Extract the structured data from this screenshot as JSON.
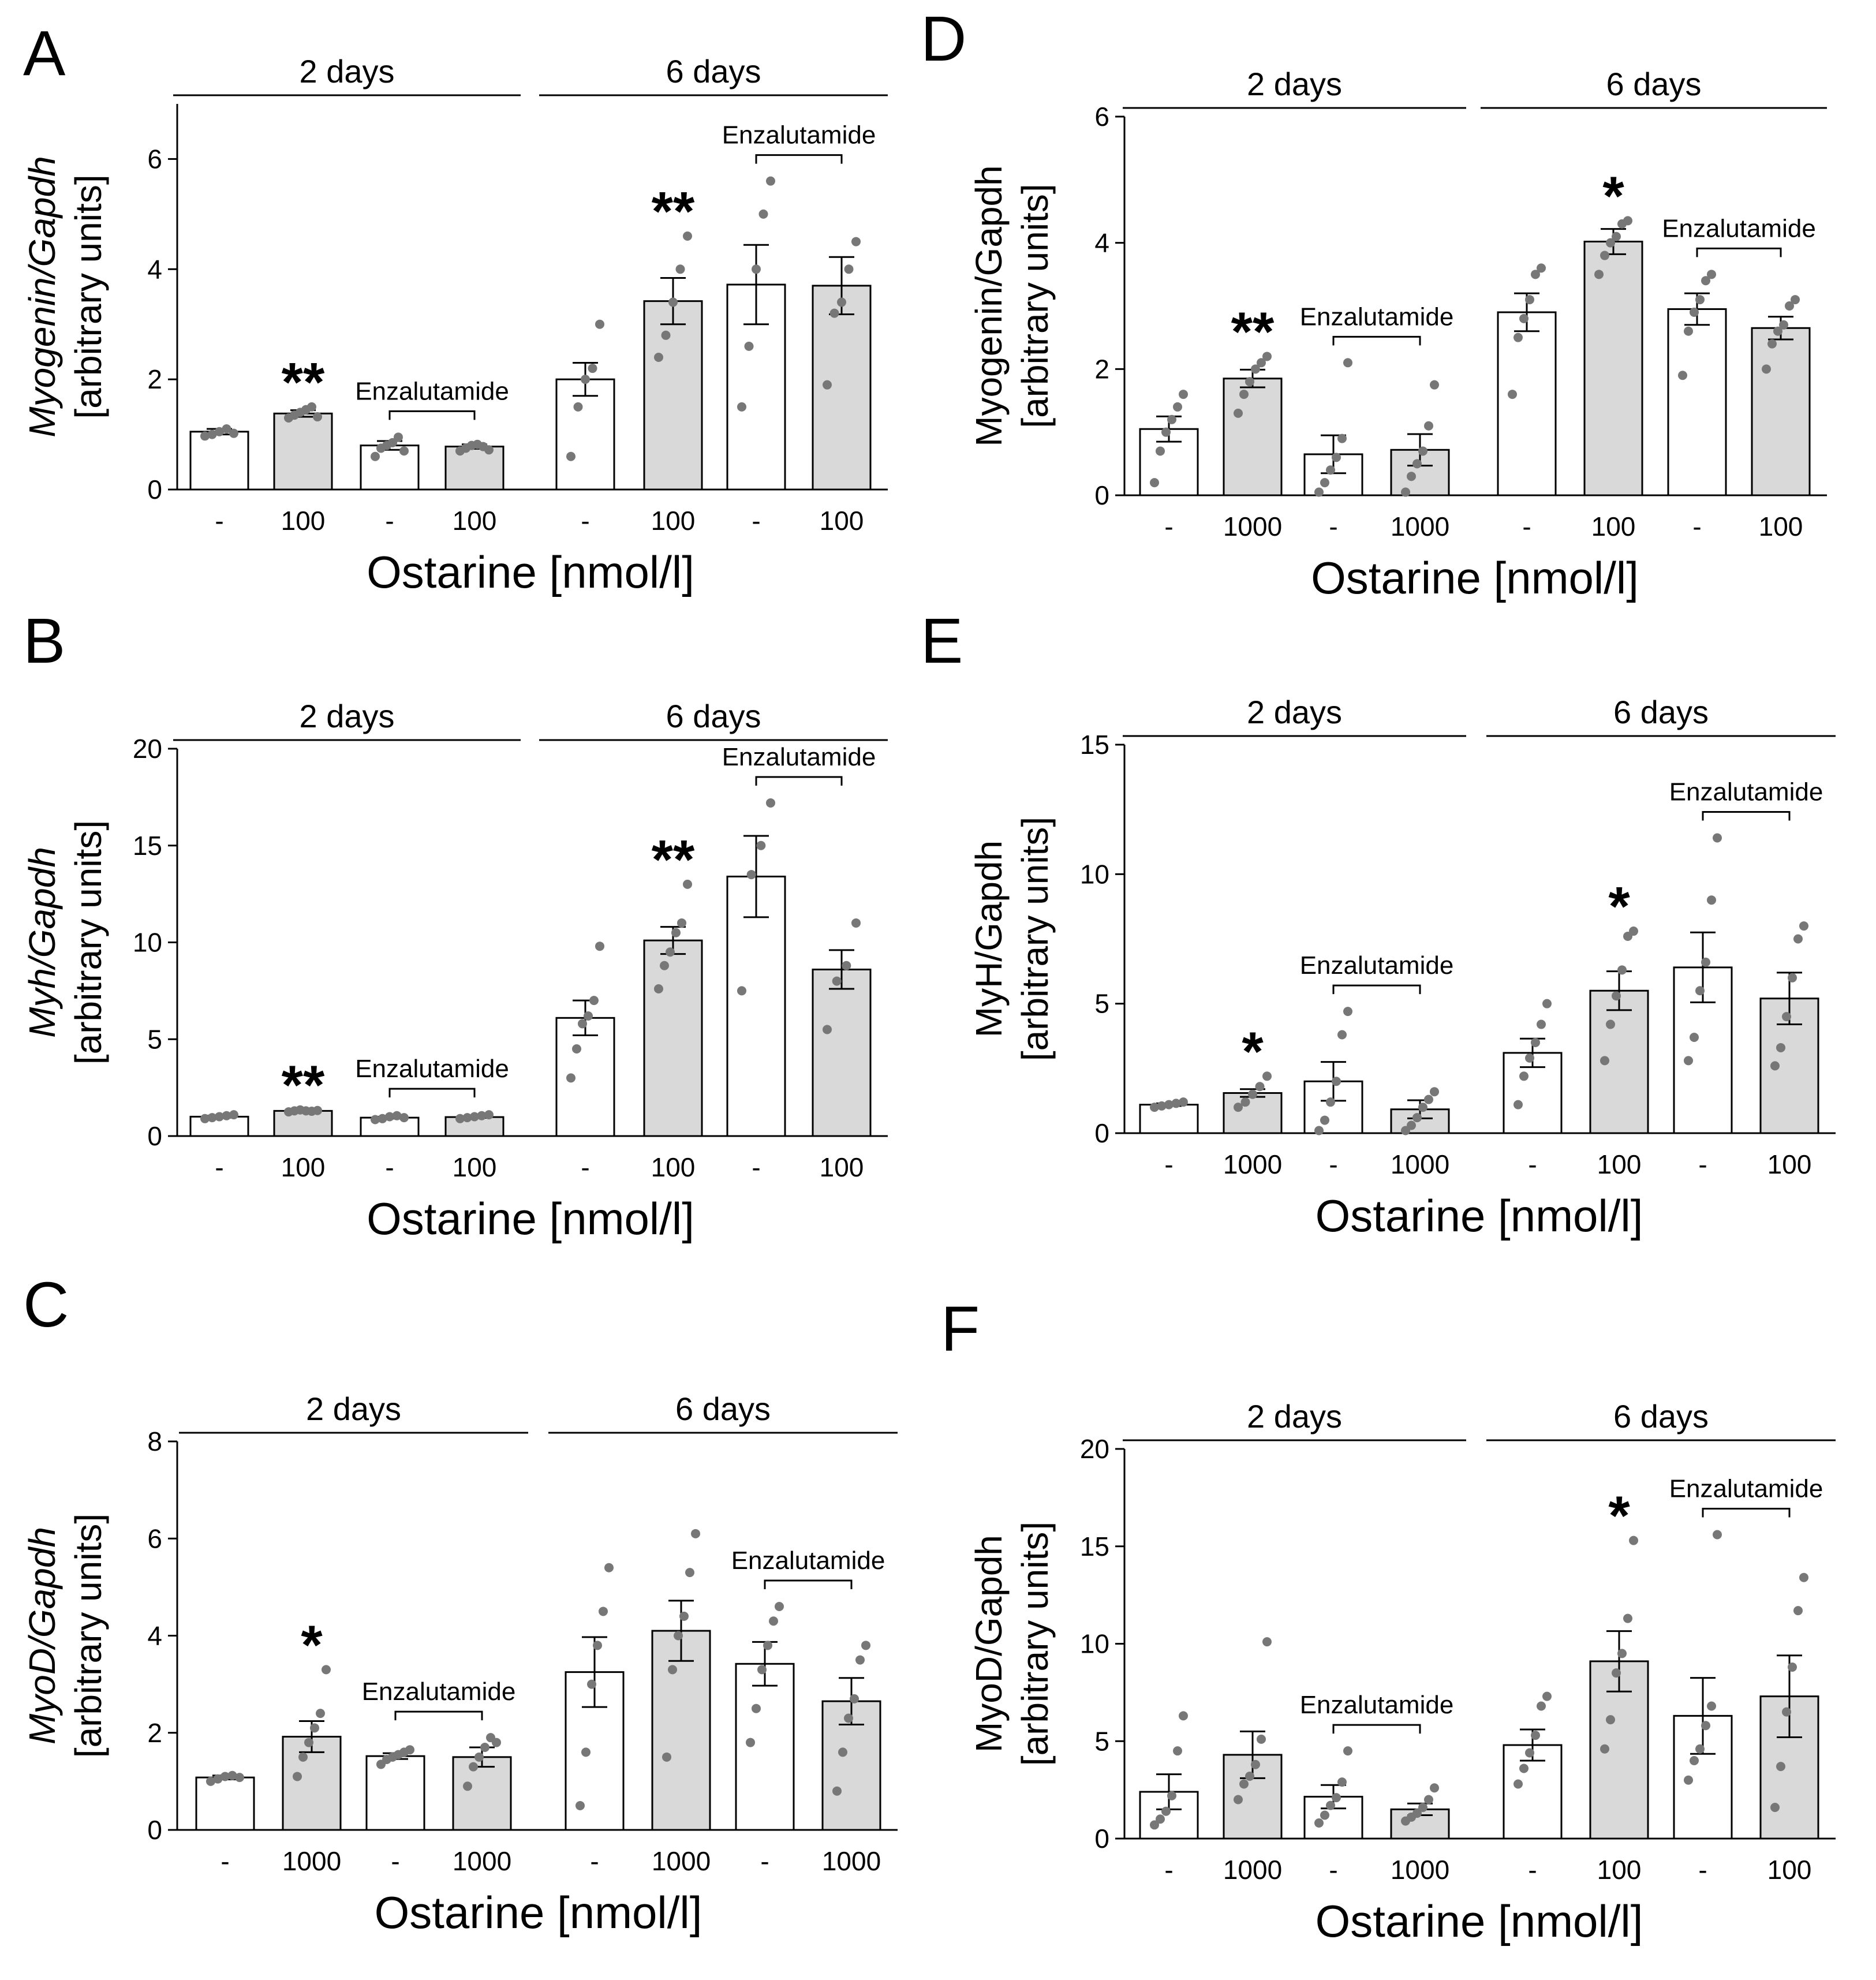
{
  "figure": {
    "colors": {
      "control": "#ffffff",
      "treated": "#d9d9d9",
      "dot": "#777777",
      "ink": "#000000"
    }
  },
  "chart_data": [
    {
      "panel": "A",
      "type": "bar",
      "ylabel_gene": "Myogenin/Gapdh",
      "ylabel_units": "[arbitrary units]",
      "italic_gene": true,
      "xlabel": "Ostarine [nmol/l]",
      "ylim": [
        0,
        7
      ],
      "yticks": [
        0,
        2,
        4,
        6
      ],
      "groups": [
        {
          "label": "2 days",
          "enzalutamide": "Enzalutamide",
          "bars": [
            {
              "cond": "-",
              "fill": "control",
              "mean": 1.05,
              "sem": 0.05,
              "points": [
                0.97,
                1.0,
                1.05,
                1.1,
                1.02
              ],
              "sig": ""
            },
            {
              "cond": "100",
              "fill": "treated",
              "mean": 1.38,
              "sem": 0.06,
              "points": [
                1.3,
                1.35,
                1.4,
                1.45,
                1.5,
                1.32
              ],
              "sig": "**"
            },
            {
              "cond": "-",
              "fill": "control",
              "mean": 0.8,
              "sem": 0.08,
              "points": [
                0.6,
                0.75,
                0.8,
                0.85,
                0.95,
                0.7
              ],
              "sig": ""
            },
            {
              "cond": "100",
              "fill": "treated",
              "mean": 0.78,
              "sem": 0.04,
              "points": [
                0.7,
                0.75,
                0.8,
                0.82,
                0.78,
                0.72
              ],
              "sig": ""
            }
          ]
        },
        {
          "label": "6 days",
          "enzalutamide": "Enzalutamide",
          "bars": [
            {
              "cond": "-",
              "fill": "control",
              "mean": 2.0,
              "sem": 0.3,
              "points": [
                0.6,
                1.5,
                2.0,
                2.2,
                3.0
              ],
              "sig": ""
            },
            {
              "cond": "100",
              "fill": "treated",
              "mean": 3.42,
              "sem": 0.42,
              "points": [
                2.4,
                2.8,
                3.4,
                4.0,
                4.6
              ],
              "sig": "**"
            },
            {
              "cond": "-",
              "fill": "control",
              "mean": 3.72,
              "sem": 0.72,
              "points": [
                1.5,
                2.6,
                4.0,
                5.0,
                5.6
              ],
              "sig": ""
            },
            {
              "cond": "100",
              "fill": "treated",
              "mean": 3.7,
              "sem": 0.52,
              "points": [
                1.9,
                3.2,
                3.4,
                4.0,
                4.5
              ],
              "sig": ""
            }
          ]
        }
      ]
    },
    {
      "panel": "B",
      "type": "bar",
      "ylabel_gene": "Myh/Gapdh",
      "ylabel_units": "[arbitrary units]",
      "italic_gene": true,
      "xlabel": "Ostarine [nmol/l]",
      "ylim": [
        0,
        20
      ],
      "yticks": [
        0,
        5,
        10,
        15,
        20
      ],
      "groups": [
        {
          "label": "2 days",
          "enzalutamide": "Enzalutamide",
          "bars": [
            {
              "cond": "-",
              "fill": "control",
              "mean": 1.0,
              "sem": 0.05,
              "points": [
                0.9,
                0.95,
                1.0,
                1.05,
                1.1
              ],
              "sig": ""
            },
            {
              "cond": "100",
              "fill": "treated",
              "mean": 1.3,
              "sem": 0.04,
              "points": [
                1.25,
                1.3,
                1.35,
                1.3,
                1.28,
                1.32
              ],
              "sig": "**"
            },
            {
              "cond": "-",
              "fill": "control",
              "mean": 0.95,
              "sem": 0.05,
              "points": [
                0.85,
                0.9,
                1.0,
                1.05,
                0.95
              ],
              "sig": ""
            },
            {
              "cond": "100",
              "fill": "treated",
              "mean": 0.98,
              "sem": 0.04,
              "points": [
                0.9,
                0.95,
                1.0,
                1.05,
                1.1
              ],
              "sig": ""
            }
          ]
        },
        {
          "label": "6 days",
          "enzalutamide": "Enzalutamide",
          "bars": [
            {
              "cond": "-",
              "fill": "control",
              "mean": 6.1,
              "sem": 0.9,
              "points": [
                3.0,
                4.5,
                5.8,
                6.2,
                7.0,
                9.8
              ],
              "sig": ""
            },
            {
              "cond": "100",
              "fill": "treated",
              "mean": 10.1,
              "sem": 0.7,
              "points": [
                7.6,
                8.8,
                9.5,
                10.5,
                11.0,
                13.0
              ],
              "sig": "**"
            },
            {
              "cond": "-",
              "fill": "control",
              "mean": 13.4,
              "sem": 2.1,
              "points": [
                7.5,
                13.5,
                15.0,
                17.2
              ],
              "sig": ""
            },
            {
              "cond": "100",
              "fill": "treated",
              "mean": 8.6,
              "sem": 1.0,
              "points": [
                5.5,
                8.0,
                8.8,
                11.0
              ],
              "sig": ""
            }
          ]
        }
      ]
    },
    {
      "panel": "C",
      "type": "bar",
      "ylabel_gene": "MyoD/Gapdh",
      "ylabel_units": "[arbitrary units]",
      "italic_gene": true,
      "xlabel": "Ostarine [nmol/l]",
      "ylim": [
        0,
        8
      ],
      "yticks": [
        0,
        2,
        4,
        6,
        8
      ],
      "groups": [
        {
          "label": "2 days",
          "enzalutamide": "Enzalutamide",
          "bars": [
            {
              "cond": "-",
              "fill": "control",
              "mean": 1.08,
              "sem": 0.04,
              "points": [
                1.0,
                1.05,
                1.1,
                1.12,
                1.08
              ],
              "sig": ""
            },
            {
              "cond": "1000",
              "fill": "treated",
              "mean": 1.92,
              "sem": 0.32,
              "points": [
                1.1,
                1.5,
                1.8,
                2.1,
                2.4,
                3.3
              ],
              "sig": "*"
            },
            {
              "cond": "-",
              "fill": "control",
              "mean": 1.52,
              "sem": 0.06,
              "points": [
                1.35,
                1.45,
                1.5,
                1.55,
                1.6,
                1.65
              ],
              "sig": ""
            },
            {
              "cond": "1000",
              "fill": "treated",
              "mean": 1.5,
              "sem": 0.2,
              "points": [
                0.9,
                1.3,
                1.5,
                1.7,
                1.9,
                1.8
              ],
              "sig": ""
            }
          ]
        },
        {
          "label": "6 days",
          "enzalutamide": "Enzalutamide",
          "bars": [
            {
              "cond": "-",
              "fill": "control",
              "mean": 3.25,
              "sem": 0.72,
              "points": [
                0.5,
                1.6,
                3.0,
                3.8,
                4.5,
                5.4
              ],
              "sig": ""
            },
            {
              "cond": "1000",
              "fill": "treated",
              "mean": 4.1,
              "sem": 0.62,
              "points": [
                1.5,
                3.3,
                4.0,
                4.4,
                5.3,
                6.1
              ],
              "sig": ""
            },
            {
              "cond": "-",
              "fill": "control",
              "mean": 3.42,
              "sem": 0.45,
              "points": [
                1.8,
                2.5,
                3.3,
                3.8,
                4.3,
                4.6
              ],
              "sig": ""
            },
            {
              "cond": "1000",
              "fill": "treated",
              "mean": 2.65,
              "sem": 0.48,
              "points": [
                0.8,
                1.6,
                2.3,
                2.7,
                3.5,
                3.8
              ],
              "sig": ""
            }
          ]
        }
      ]
    },
    {
      "panel": "D",
      "type": "bar",
      "ylabel_gene": "Myogenin/Gapdh",
      "ylabel_units": "[arbitrary units]",
      "italic_gene": false,
      "xlabel": "Ostarine [nmol/l]",
      "ylim": [
        0,
        6
      ],
      "yticks": [
        0,
        2,
        4,
        6
      ],
      "groups": [
        {
          "label": "2 days",
          "enzalutamide": "Enzalutamide",
          "bars": [
            {
              "cond": "-",
              "fill": "control",
              "mean": 1.05,
              "sem": 0.2,
              "points": [
                0.2,
                0.7,
                1.0,
                1.2,
                1.4,
                1.6
              ],
              "sig": ""
            },
            {
              "cond": "1000",
              "fill": "treated",
              "mean": 1.85,
              "sem": 0.14,
              "points": [
                1.3,
                1.6,
                1.8,
                2.0,
                2.1,
                2.2
              ],
              "sig": "**"
            },
            {
              "cond": "-",
              "fill": "control",
              "mean": 0.65,
              "sem": 0.3,
              "points": [
                0.05,
                0.2,
                0.4,
                0.6,
                0.9,
                2.1
              ],
              "sig": ""
            },
            {
              "cond": "1000",
              "fill": "treated",
              "mean": 0.72,
              "sem": 0.25,
              "points": [
                0.05,
                0.3,
                0.5,
                0.7,
                1.1,
                1.75
              ],
              "sig": ""
            }
          ]
        },
        {
          "label": "6 days",
          "enzalutamide": "Enzalutamide",
          "bars": [
            {
              "cond": "-",
              "fill": "control",
              "mean": 2.9,
              "sem": 0.3,
              "points": [
                1.6,
                2.5,
                2.8,
                3.1,
                3.5,
                3.6
              ],
              "sig": ""
            },
            {
              "cond": "100",
              "fill": "treated",
              "mean": 4.02,
              "sem": 0.2,
              "points": [
                3.5,
                3.8,
                4.0,
                4.1,
                4.3,
                4.35
              ],
              "sig": "*"
            },
            {
              "cond": "-",
              "fill": "control",
              "mean": 2.95,
              "sem": 0.25,
              "points": [
                1.9,
                2.6,
                2.9,
                3.1,
                3.4,
                3.5
              ],
              "sig": ""
            },
            {
              "cond": "100",
              "fill": "treated",
              "mean": 2.65,
              "sem": 0.18,
              "points": [
                2.0,
                2.4,
                2.6,
                2.7,
                3.0,
                3.1
              ],
              "sig": ""
            }
          ]
        }
      ]
    },
    {
      "panel": "E",
      "type": "bar",
      "ylabel_gene": "MyH/Gapdh",
      "ylabel_units": "[arbitrary units]",
      "italic_gene": false,
      "xlabel": "Ostarine [nmol/l]",
      "ylim": [
        0,
        15
      ],
      "yticks": [
        0,
        5,
        10,
        15
      ],
      "groups": [
        {
          "label": "2 days",
          "enzalutamide": "Enzalutamide",
          "bars": [
            {
              "cond": "-",
              "fill": "control",
              "mean": 1.1,
              "sem": 0.05,
              "points": [
                1.0,
                1.05,
                1.1,
                1.15,
                1.2
              ],
              "sig": ""
            },
            {
              "cond": "1000",
              "fill": "treated",
              "mean": 1.55,
              "sem": 0.15,
              "points": [
                1.0,
                1.2,
                1.5,
                1.8,
                2.2
              ],
              "sig": "*"
            },
            {
              "cond": "-",
              "fill": "control",
              "mean": 2.0,
              "sem": 0.75,
              "points": [
                0.1,
                0.5,
                1.2,
                2.0,
                3.8,
                4.7
              ],
              "sig": ""
            },
            {
              "cond": "1000",
              "fill": "treated",
              "mean": 0.92,
              "sem": 0.35,
              "points": [
                0.1,
                0.3,
                0.6,
                1.0,
                1.3,
                1.6
              ],
              "sig": ""
            }
          ]
        },
        {
          "label": "6 days",
          "enzalutamide": "Enzalutamide",
          "bars": [
            {
              "cond": "-",
              "fill": "control",
              "mean": 3.1,
              "sem": 0.55,
              "points": [
                1.1,
                2.2,
                2.9,
                3.5,
                4.2,
                5.0
              ],
              "sig": ""
            },
            {
              "cond": "100",
              "fill": "treated",
              "mean": 5.5,
              "sem": 0.75,
              "points": [
                2.8,
                4.2,
                5.3,
                6.3,
                7.6,
                7.8
              ],
              "sig": "*"
            },
            {
              "cond": "-",
              "fill": "control",
              "mean": 6.4,
              "sem": 1.35,
              "points": [
                2.8,
                3.7,
                5.5,
                6.6,
                9.0,
                11.4
              ],
              "sig": ""
            },
            {
              "cond": "100",
              "fill": "treated",
              "mean": 5.2,
              "sem": 1.0,
              "points": [
                2.6,
                3.3,
                4.5,
                6.0,
                7.5,
                8.0
              ],
              "sig": ""
            }
          ]
        }
      ]
    },
    {
      "panel": "F",
      "type": "bar",
      "ylabel_gene": "MyoD/Gapdh",
      "ylabel_units": "[arbitrary units]",
      "italic_gene": false,
      "xlabel": "Ostarine [nmol/l]",
      "ylim": [
        0,
        20
      ],
      "yticks": [
        0,
        5,
        10,
        15,
        20
      ],
      "groups": [
        {
          "label": "2 days",
          "enzalutamide": "Enzalutamide",
          "bars": [
            {
              "cond": "-",
              "fill": "control",
              "mean": 2.4,
              "sem": 0.9,
              "points": [
                0.7,
                1.0,
                1.4,
                2.2,
                4.5,
                6.3
              ],
              "sig": ""
            },
            {
              "cond": "1000",
              "fill": "treated",
              "mean": 4.3,
              "sem": 1.2,
              "points": [
                2.0,
                2.8,
                3.2,
                3.8,
                5.1,
                10.1
              ],
              "sig": ""
            },
            {
              "cond": "-",
              "fill": "control",
              "mean": 2.15,
              "sem": 0.6,
              "points": [
                0.8,
                1.2,
                1.7,
                2.1,
                2.9,
                4.5
              ],
              "sig": ""
            },
            {
              "cond": "1000",
              "fill": "treated",
              "mean": 1.5,
              "sem": 0.3,
              "points": [
                0.9,
                1.1,
                1.3,
                1.6,
                2.0,
                2.6
              ],
              "sig": ""
            }
          ]
        },
        {
          "label": "6 days",
          "enzalutamide": "Enzalutamide",
          "bars": [
            {
              "cond": "-",
              "fill": "control",
              "mean": 4.8,
              "sem": 0.8,
              "points": [
                2.8,
                3.6,
                4.4,
                5.3,
                6.8,
                7.3
              ],
              "sig": ""
            },
            {
              "cond": "100",
              "fill": "treated",
              "mean": 9.1,
              "sem": 1.55,
              "points": [
                4.6,
                6.1,
                8.5,
                9.5,
                11.3,
                15.3
              ],
              "sig": "*"
            },
            {
              "cond": "-",
              "fill": "control",
              "mean": 6.3,
              "sem": 1.95,
              "points": [
                3.0,
                4.0,
                4.6,
                5.8,
                6.8,
                15.6
              ],
              "sig": ""
            },
            {
              "cond": "100",
              "fill": "treated",
              "mean": 7.3,
              "sem": 2.1,
              "points": [
                1.6,
                3.7,
                6.5,
                8.8,
                11.7,
                13.4
              ],
              "sig": ""
            }
          ]
        }
      ]
    }
  ]
}
